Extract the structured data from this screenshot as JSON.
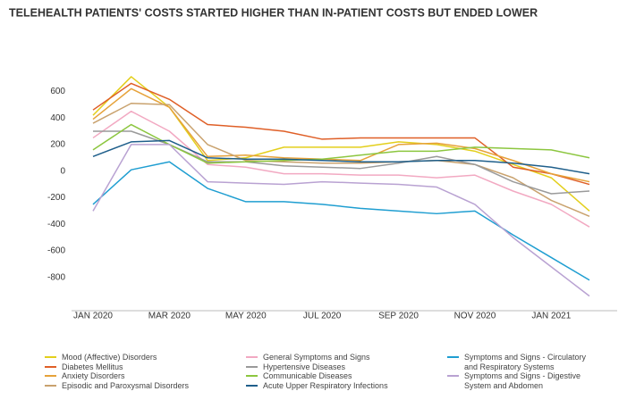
{
  "chart_data": {
    "type": "line",
    "title": "TELEHEALTH PATIENTS' COSTS STARTED HIGHER THAN IN-PATIENT COSTS BUT ENDED LOWER",
    "categories": [
      "JAN 2020",
      null,
      "MAR 2020",
      null,
      "MAY 2020",
      null,
      "JUL 2020",
      null,
      "SEP 2020",
      null,
      "NOV 2020",
      null,
      "JAN 2021",
      null
    ],
    "ylim": [
      -1050,
      750
    ],
    "yticks": [
      -800,
      -600,
      -400,
      -200,
      0,
      200,
      400,
      600
    ],
    "grid": false,
    "legend": "bottom",
    "series": [
      {
        "name": "Mood (Affective) Disorders",
        "color": "#e3cf1c",
        "values": [
          420,
          710,
          480,
          80,
          100,
          180,
          180,
          180,
          220,
          200,
          150,
          50,
          -50,
          -300
        ]
      },
      {
        "name": "Diabetes Mellitus",
        "color": "#df5f27",
        "values": [
          460,
          660,
          540,
          350,
          330,
          300,
          240,
          250,
          250,
          250,
          250,
          30,
          -20,
          -100
        ]
      },
      {
        "name": "Anxiety Disorders",
        "color": "#e6a23a",
        "values": [
          390,
          620,
          480,
          110,
          120,
          100,
          90,
          80,
          200,
          210,
          170,
          80,
          -20,
          -80
        ]
      },
      {
        "name": "Episodic and Paroxysmal Disorders",
        "color": "#c9a26e",
        "values": [
          360,
          510,
          500,
          200,
          80,
          70,
          60,
          60,
          70,
          80,
          50,
          -50,
          -220,
          -340
        ]
      },
      {
        "name": "General Symptoms and Signs",
        "color": "#f2a9c2",
        "values": [
          250,
          450,
          300,
          50,
          30,
          -20,
          -20,
          -30,
          -30,
          -50,
          -30,
          -150,
          -250,
          -420
        ]
      },
      {
        "name": "Hypertensive Diseases",
        "color": "#9a9a9a",
        "values": [
          300,
          300,
          200,
          70,
          70,
          40,
          30,
          20,
          60,
          110,
          50,
          -80,
          -170,
          -150
        ]
      },
      {
        "name": "Communicable Diseases",
        "color": "#8cc63f",
        "values": [
          160,
          350,
          200,
          60,
          70,
          80,
          90,
          120,
          150,
          150,
          180,
          170,
          160,
          100
        ]
      },
      {
        "name": "Acute Upper Respiratory Infections",
        "color": "#1f5f8b",
        "values": [
          110,
          220,
          230,
          100,
          90,
          90,
          80,
          70,
          70,
          80,
          80,
          60,
          30,
          -20
        ]
      },
      {
        "name": "Symptoms and Signs - Circulatory and Respiratory Systems",
        "color": "#1f9ed1",
        "values": [
          -250,
          10,
          70,
          -130,
          -230,
          -230,
          -250,
          -280,
          -300,
          -320,
          -300,
          -480,
          -650,
          -820
        ]
      },
      {
        "name": "Symptoms and Signs - Digestive System and Abdomen",
        "color": "#b9a2d2",
        "values": [
          -300,
          200,
          200,
          -80,
          -90,
          -100,
          -80,
          -90,
          -100,
          -120,
          -250,
          -500,
          -720,
          -940
        ]
      }
    ]
  }
}
